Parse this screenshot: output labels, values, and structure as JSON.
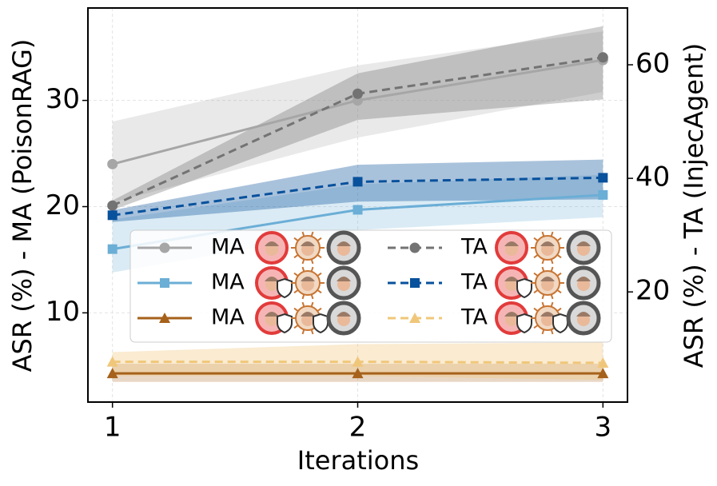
{
  "chart_data": {
    "type": "line",
    "x_label": "Iterations",
    "y_label": "ASR (%) - MA (PoisonRAG)",
    "y2_label": "ASR (%) - TA (InjecAgent)",
    "x": [
      1,
      2,
      3
    ],
    "xlim": [
      0.9,
      3.1
    ],
    "xticks": [
      1,
      2,
      3
    ],
    "ylim": [
      1.6,
      38.7
    ],
    "yticks": [
      10,
      20,
      30
    ],
    "y2lim": [
      0.6,
      70
    ],
    "y2ticks": [
      20,
      40,
      60
    ],
    "grid": true,
    "series": [
      {
        "name": "MA",
        "color": "#a6a6a6",
        "marker": "circle",
        "dash": false,
        "axis": "y",
        "values": [
          24.0,
          30.0,
          33.8
        ],
        "lower": [
          20.4,
          26.5,
          30.8
        ],
        "upper": [
          28.0,
          33.3,
          36.5
        ]
      },
      {
        "name": "MA",
        "color": "#6baed6",
        "marker": "square",
        "dash": false,
        "axis": "y",
        "values": [
          16.0,
          19.7,
          21.1
        ],
        "lower": [
          13.8,
          17.8,
          19.0
        ],
        "upper": [
          18.8,
          22.1,
          23.0
        ]
      },
      {
        "name": "MA",
        "color": "#a6611a",
        "marker": "triangle",
        "dash": false,
        "axis": "y",
        "values": [
          4.3,
          4.3,
          4.3
        ],
        "lower": [
          3.5,
          3.5,
          3.5
        ],
        "upper": [
          5.2,
          5.2,
          5.2
        ]
      },
      {
        "name": "TA",
        "color": "#737373",
        "marker": "circle",
        "dash": true,
        "axis": "y2",
        "values": [
          35.2,
          54.9,
          61.3
        ],
        "lower": [
          34.4,
          50.3,
          53.9
        ],
        "upper": [
          36.1,
          58.5,
          66.8
        ]
      },
      {
        "name": "TA",
        "color": "#08519c",
        "marker": "square",
        "dash": true,
        "axis": "y2",
        "values": [
          33.5,
          39.4,
          40.1
        ],
        "lower": [
          32.3,
          35.9,
          36.3
        ],
        "upper": [
          34.4,
          42.4,
          43.3
        ]
      },
      {
        "name": "TA",
        "color": "#f0c77a",
        "marker": "triangle",
        "dash": true,
        "axis": "y2",
        "values": [
          7.7,
          7.7,
          7.5
        ],
        "lower": [
          5.2,
          5.2,
          4.5
        ],
        "upper": [
          9.4,
          10.8,
          11.1
        ]
      }
    ]
  }
}
